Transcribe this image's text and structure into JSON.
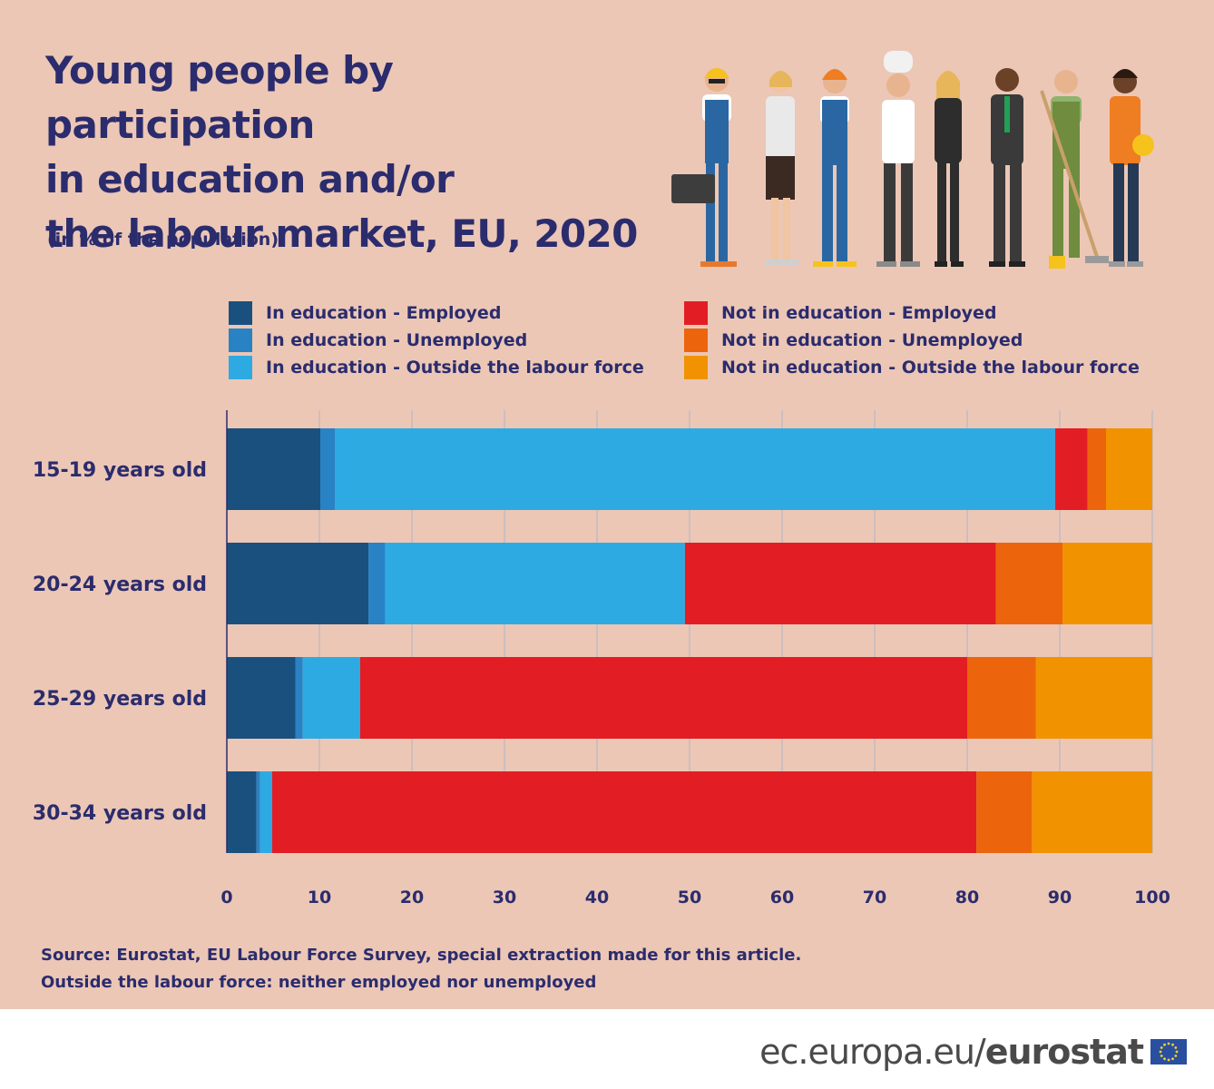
{
  "header": {
    "title_lines": [
      "Young people by participation",
      "in education and/or",
      "the labour market, EU, 2020"
    ],
    "subtitle": "(in % of the population)"
  },
  "legend": [
    {
      "label": "In education - Employed",
      "color": "#1a507d"
    },
    {
      "label": "In education - Unemployed",
      "color": "#2882c4"
    },
    {
      "label": "In education - Outside the labour force",
      "color": "#2eaae2"
    },
    {
      "label": "Not in education - Employed",
      "color": "#e31d24"
    },
    {
      "label": "Not in education - Unemployed",
      "color": "#ec650c"
    },
    {
      "label": "Not in education - Outside the labour force",
      "color": "#f19300"
    }
  ],
  "chart_data": {
    "type": "bar",
    "orientation": "horizontal",
    "stacked": true,
    "categories": [
      "15-19 years old",
      "20-24 years old",
      "25-29 years old",
      "30-34 years old"
    ],
    "series": [
      {
        "name": "In education - Employed",
        "color": "#1a507d",
        "values": [
          10.1,
          15.3,
          7.4,
          3.2
        ]
      },
      {
        "name": "In education - Unemployed",
        "color": "#2882c4",
        "values": [
          1.6,
          1.8,
          0.8,
          0.4
        ]
      },
      {
        "name": "In education - Outside the labour force",
        "color": "#2eaae2",
        "values": [
          77.8,
          32.4,
          6.2,
          1.3
        ]
      },
      {
        "name": "Not in education - Employed",
        "color": "#e31d24",
        "values": [
          3.5,
          33.6,
          65.6,
          76.1
        ]
      },
      {
        "name": "Not in education - Unemployed",
        "color": "#ec650c",
        "values": [
          2.0,
          7.2,
          7.4,
          6.0
        ]
      },
      {
        "name": "Not in education - Outside the labour force",
        "color": "#f19300",
        "values": [
          5.0,
          9.7,
          12.6,
          13.0
        ]
      }
    ],
    "x_ticks": [
      "0",
      "10",
      "20",
      "30",
      "40",
      "50",
      "60",
      "70",
      "80",
      "90",
      "100"
    ],
    "xlim": [
      0,
      100
    ],
    "grid": true,
    "legend_position": "top"
  },
  "notes": [
    "Source: Eurostat, EU Labour Force Survey, special extraction made for this article.",
    "Outside the labour force: neither employed nor unemployed"
  ],
  "footer": {
    "domain_text": "ec.europa.eu/",
    "brand_text": "eurostat"
  }
}
